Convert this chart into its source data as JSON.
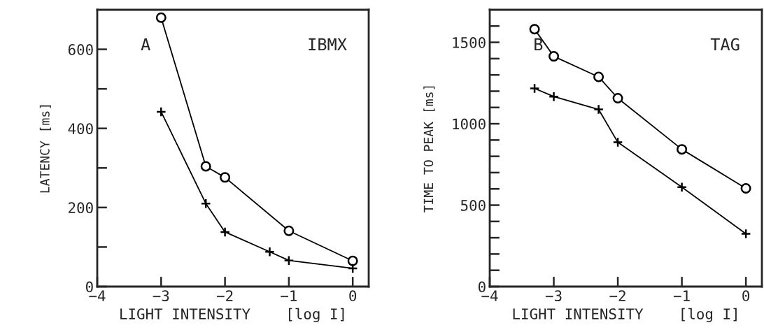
{
  "chart_data": [
    {
      "type": "line",
      "xlabel": "LIGHT INTENSITY    [log I]",
      "ylabel": "LATENCY [ms]",
      "annotations": [
        "A",
        "IBMX"
      ],
      "xlim": [
        -4,
        0.25
      ],
      "xticks": [
        -4,
        -3,
        -2,
        -1,
        0
      ],
      "ylim": [
        0,
        700
      ],
      "yticks": [
        0,
        {
          "value": 100,
          "label": null
        },
        200,
        {
          "value": 300,
          "label": null
        },
        400,
        {
          "value": 500,
          "label": null
        },
        600
      ],
      "grid": false,
      "legend": false,
      "series": [
        {
          "color": "#000000",
          "marker": "circle",
          "x": [
            -3,
            -2.3,
            -2,
            -1,
            0
          ],
          "values": [
            680,
            304,
            276,
            141,
            65
          ]
        },
        {
          "color": "#000000",
          "marker": "cross",
          "x": [
            -3,
            -2.3,
            -2,
            -1.3,
            -1,
            0
          ],
          "values": [
            442,
            210,
            138,
            88,
            66,
            46
          ]
        }
      ]
    },
    {
      "type": "line",
      "xlabel": "LIGHT INTENSITY    [log I]",
      "ylabel": "TIME TO PEAK [ms]",
      "annotations": [
        "B",
        "TAG"
      ],
      "xlim": [
        -4,
        0.25
      ],
      "xticks": [
        -4,
        -3,
        -2,
        -1,
        0
      ],
      "ylim": [
        0,
        1700
      ],
      "yticks": [
        0,
        {
          "value": 100,
          "label": null
        },
        {
          "value": 200,
          "label": null
        },
        {
          "value": 300,
          "label": null
        },
        {
          "value": 400,
          "label": null
        },
        500,
        {
          "value": 600,
          "label": null
        },
        {
          "value": 700,
          "label": null
        },
        {
          "value": 800,
          "label": null
        },
        {
          "value": 900,
          "label": null
        },
        1000,
        {
          "value": 1100,
          "label": null
        },
        {
          "value": 1200,
          "label": null
        },
        {
          "value": 1300,
          "label": null
        },
        {
          "value": 1400,
          "label": null
        },
        1500,
        {
          "value": 1600,
          "label": null
        }
      ],
      "grid": false,
      "legend": false,
      "series": [
        {
          "color": "#000000",
          "marker": "circle",
          "x": [
            -3.3,
            -3,
            -2.3,
            -2,
            -1,
            0
          ],
          "values": [
            1581,
            1414,
            1288,
            1157,
            843,
            603
          ]
        },
        {
          "color": "#000000",
          "marker": "cross",
          "x": [
            -3.3,
            -3,
            -2.3,
            -2,
            -1,
            0
          ],
          "values": [
            1217,
            1167,
            1088,
            886,
            611,
            324
          ]
        }
      ]
    }
  ]
}
